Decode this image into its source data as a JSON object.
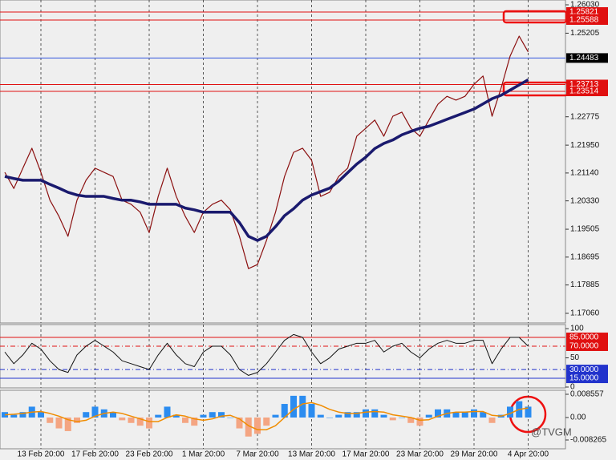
{
  "watermark": "@TVGM",
  "chart_data": [
    {
      "type": "line",
      "categories": [
        null,
        null,
        null,
        null,
        "13 Feb 20:00",
        null,
        null,
        null,
        null,
        null,
        "17 Feb 20:00",
        null,
        null,
        null,
        null,
        null,
        "23 Feb 20:00",
        null,
        null,
        null,
        null,
        null,
        "1 Mar 20:00",
        null,
        null,
        null,
        null,
        null,
        "7 Mar 20:00",
        null,
        null,
        null,
        null,
        null,
        "13 Mar 20:00",
        null,
        null,
        null,
        null,
        null,
        "17 Mar 20:00",
        null,
        null,
        null,
        null,
        null,
        "23 Mar 20:00",
        null,
        null,
        null,
        null,
        null,
        "29 Mar 20:00",
        null,
        null,
        null,
        null,
        null,
        "4 Apr 20:00"
      ],
      "ylim": [
        1.1678,
        1.2617
      ],
      "yticks": [
        {
          "value": 1.2603,
          "label": "1.26030"
        },
        1.25205,
        1.22775,
        {
          "value": 1.2195,
          "label": "1.21950"
        },
        {
          "value": 1.2114,
          "label": "1.21140"
        },
        {
          "value": 1.2033,
          "label": "1.20330"
        },
        1.19505,
        1.18695,
        1.17885,
        {
          "value": 1.1706,
          "label": "1.17060"
        }
      ],
      "levels": [
        {
          "value": 1.25821,
          "color": "#e01010",
          "box": "#e01010"
        },
        {
          "value": 1.25588,
          "color": "#e01010",
          "box": "#e01010"
        },
        {
          "value": 1.24483,
          "color": "#3355dd",
          "box": "#000000"
        },
        {
          "value": 1.23713,
          "color": "#e01010",
          "box": "#e01010"
        },
        {
          "value": 1.23514,
          "color": "#e01010",
          "box": "#e01010"
        }
      ],
      "series": [
        {
          "color": "#8b1010",
          "width": 1.2,
          "values": [
            1.2116,
            1.2069,
            1.2128,
            1.2186,
            1.2116,
            1.2035,
            1.1988,
            1.193,
            1.2035,
            1.2093,
            1.2128,
            1.2116,
            1.2104,
            1.2035,
            1.2023,
            1.2,
            1.1941,
            1.2046,
            1.2128,
            1.2046,
            1.1988,
            1.1941,
            1.2,
            1.2023,
            1.2035,
            1.2007,
            1.193,
            1.1836,
            1.1848,
            1.1918,
            1.2,
            1.2104,
            1.2174,
            1.2186,
            1.2151,
            1.2046,
            1.2058,
            1.2104,
            1.2128,
            1.2221,
            1.2244,
            1.2268,
            1.2221,
            1.2279,
            1.2291,
            1.2244,
            1.2221,
            1.2268,
            1.2314,
            1.2337,
            1.2326,
            1.2337,
            1.2372,
            1.2396,
            1.2279,
            1.2361,
            1.2454,
            1.2512,
            1.2466
          ]
        },
        {
          "color": "#1a1a6e",
          "width": 3.5,
          "values": [
            1.2104,
            1.2098,
            1.2093,
            1.2093,
            1.2093,
            1.2081,
            1.207,
            1.2058,
            1.205,
            1.2046,
            1.2046,
            1.2046,
            1.204,
            1.2035,
            1.2035,
            1.203,
            1.2023,
            1.2023,
            1.2023,
            1.2023,
            1.2012,
            1.2007,
            1.2,
            1.2,
            1.2,
            1.2,
            1.197,
            1.193,
            1.1918,
            1.193,
            1.1958,
            1.199,
            1.201,
            1.2035,
            1.205,
            1.206,
            1.207,
            1.209,
            1.2115,
            1.214,
            1.216,
            1.2185,
            1.22,
            1.221,
            1.2225,
            1.2235,
            1.2244,
            1.225,
            1.226,
            1.227,
            1.228,
            1.229,
            1.23,
            1.2315,
            1.233,
            1.234,
            1.2355,
            1.237,
            1.2385
          ]
        }
      ]
    },
    {
      "type": "line",
      "ylim": [
        -1.4,
        107
      ],
      "yticks": [
        100,
        50,
        0
      ],
      "levels": [
        {
          "value": 85,
          "label": "85.0000",
          "color": "#e01010",
          "box": "#e01010"
        },
        {
          "value": 70,
          "label": "70.0000",
          "color": "#e01010",
          "box": "#e01010",
          "dash": true
        },
        {
          "value": 30,
          "label": "30.0000",
          "color": "#2233cc",
          "box": "#2233cc",
          "dash": true
        },
        {
          "value": 15,
          "label": "15.0000",
          "color": "#2233cc",
          "box": "#2233cc"
        }
      ],
      "series": [
        {
          "color": "#111111",
          "width": 1,
          "values": [
            60,
            40,
            55,
            75,
            65,
            45,
            30,
            25,
            55,
            70,
            80,
            70,
            60,
            45,
            40,
            35,
            30,
            55,
            75,
            55,
            40,
            35,
            60,
            70,
            70,
            55,
            30,
            20,
            25,
            40,
            60,
            80,
            90,
            85,
            60,
            40,
            50,
            65,
            70,
            75,
            75,
            80,
            60,
            70,
            75,
            60,
            50,
            65,
            75,
            80,
            75,
            75,
            80,
            80,
            40,
            65,
            85,
            85,
            70
          ]
        }
      ]
    },
    {
      "type": "bar",
      "ylim": [
        -0.01151,
        0.01003
      ],
      "yticks": [
        0.008557,
        {
          "value": 0,
          "label": "0.00"
        },
        -0.008265
      ],
      "series": [
        {
          "kind": "bar",
          "color": "#2b8cf0",
          "negative_color": "#f4a582",
          "values": [
            0.002,
            0.001,
            0.002,
            0.004,
            0.002,
            -0.002,
            -0.004,
            -0.005,
            -0.002,
            0.002,
            0.004,
            0.003,
            0.002,
            -0.001,
            -0.002,
            -0.003,
            -0.004,
            0.001,
            0.004,
            0.001,
            -0.002,
            -0.003,
            0.001,
            0.002,
            0.002,
            0,
            -0.004,
            -0.007,
            -0.006,
            -0.003,
            0.001,
            0.005,
            0.008,
            0.008,
            0.005,
            0.001,
            0,
            0.001,
            0.002,
            0.002,
            0.003,
            0.003,
            0.001,
            -0.001,
            0,
            -0.002,
            -0.003,
            0.001,
            0.003,
            0.003,
            0.002,
            0.002,
            0.003,
            0.002,
            -0.002,
            0.001,
            0.004,
            0.006,
            0.004
          ]
        },
        {
          "kind": "line",
          "color": "#f08c00",
          "width": 1.5,
          "values": [
            0.001,
            0.0012,
            0.0015,
            0.002,
            0.0022,
            0.0015,
            0.0005,
            -0.0008,
            -0.0015,
            -0.001,
            0.0005,
            0.0015,
            0.002,
            0.0015,
            0.0005,
            -0.0005,
            -0.0015,
            -0.0015,
            0,
            0.001,
            0.0005,
            -0.0005,
            -0.001,
            -0.0005,
            0.0005,
            0.0008,
            -0.0005,
            -0.003,
            -0.0045,
            -0.0045,
            -0.003,
            0,
            0.003,
            0.005,
            0.0055,
            0.0045,
            0.003,
            0.002,
            0.0015,
            0.0015,
            0.002,
            0.0022,
            0.002,
            0.001,
            0.0005,
            0,
            -0.001,
            -0.0008,
            0.0005,
            0.0015,
            0.002,
            0.002,
            0.0022,
            0.0022,
            0.0008,
            0.0005,
            0.0015,
            0.003,
            0.0035
          ]
        }
      ]
    }
  ]
}
